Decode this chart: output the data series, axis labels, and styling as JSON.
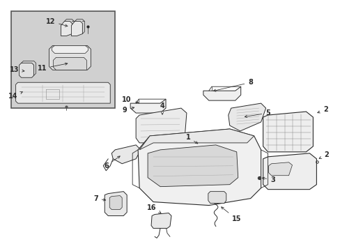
{
  "bg_color": "#ffffff",
  "line_color": "#2a2a2a",
  "inset_bg": "#d4d4d4",
  "fig_width": 4.89,
  "fig_height": 3.6,
  "dpi": 100
}
